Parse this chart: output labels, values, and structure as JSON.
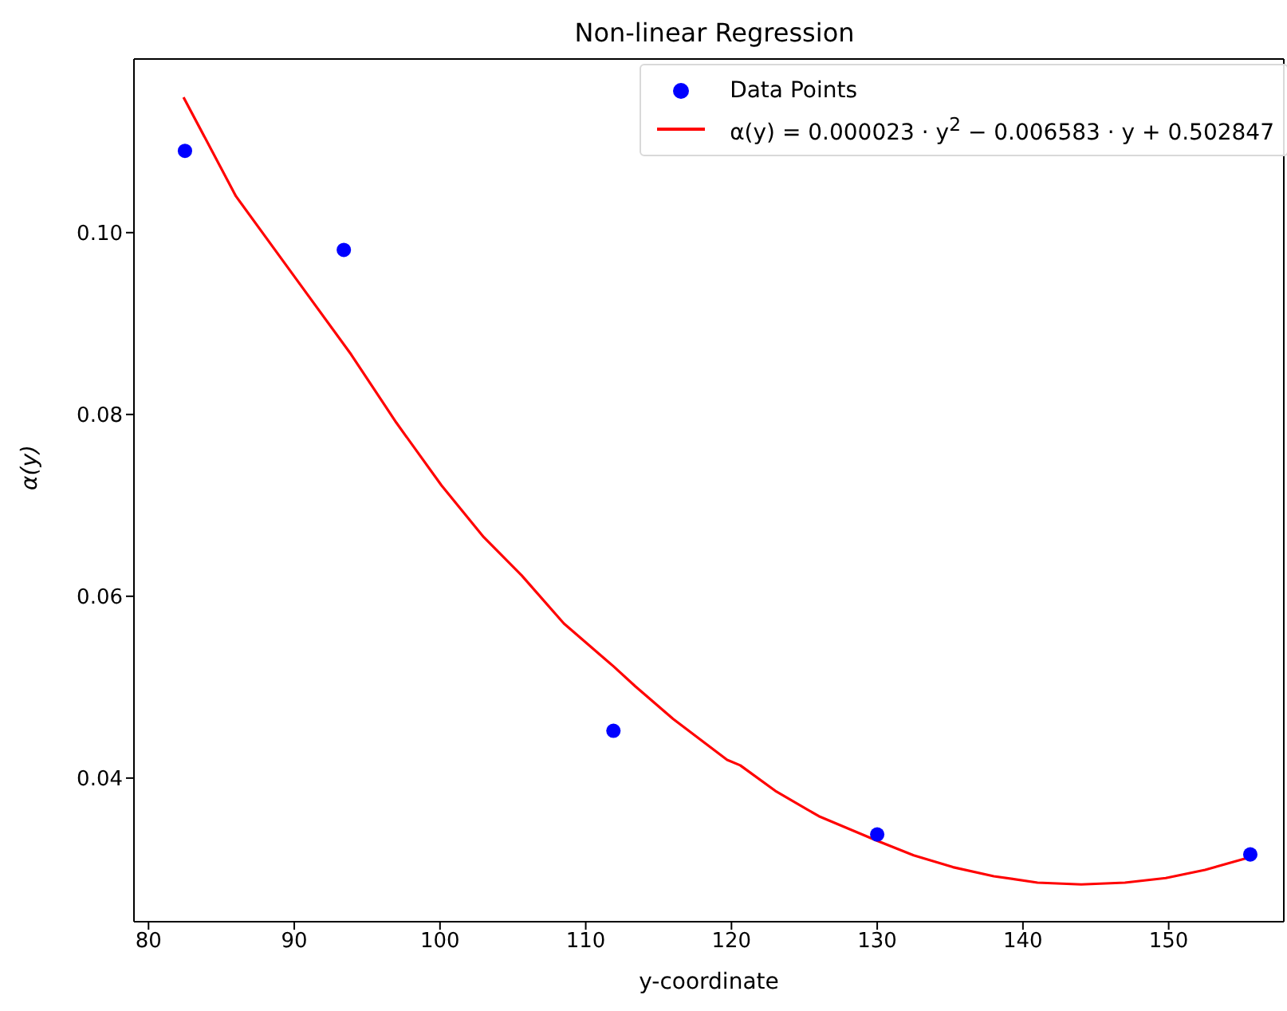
{
  "chart_data": {
    "type": "scatter",
    "title": "Non-linear Regression",
    "xlabel": "y-coordinate",
    "ylabel": "α(y)",
    "xlim": [
      79.0,
      157.9
    ],
    "ylim": [
      0.0242,
      0.1191
    ],
    "xticks": [
      80,
      90,
      100,
      110,
      120,
      130,
      140,
      150
    ],
    "yticks": [
      0.04,
      0.06,
      0.08,
      {
        "value": 0.1,
        "label": "0.10"
      }
    ],
    "legend": "top right",
    "series": [
      {
        "name": "Data Points",
        "marker": "circle",
        "color": "#0000ff",
        "x": [
          82.5,
          93.4,
          111.9,
          130.0,
          155.6
        ],
        "values": [
          0.109,
          0.0981,
          0.0452,
          0.0338,
          0.0316
        ]
      },
      {
        "name": "α(y) = 0.000023 · y$^{2}$ − 0.006583 · y + 0.502847",
        "type": "line",
        "marker": "none",
        "line_style": "solid",
        "color": "#ff0000",
        "x": [
          82.4,
          86,
          89.95,
          93.9,
          97,
          100.1,
          103,
          105.6,
          108.5,
          111.9,
          113.4,
          116,
          119.7,
          120.6,
          123,
          126,
          130,
          132.5,
          135.2,
          138,
          141,
          144,
          147,
          149.8,
          152.5,
          155.6
        ],
        "values": [
          0.1149,
          0.104,
          0.0953,
          0.0866,
          0.0791,
          0.0722,
          0.0665,
          0.0623,
          0.057,
          0.0523,
          0.0501,
          0.0465,
          0.042,
          0.0414,
          0.0386,
          0.0358,
          0.0331,
          0.0315,
          0.0302,
          0.0292,
          0.0285,
          0.0283,
          0.0285,
          0.029,
          0.0299,
          0.0313
        ]
      }
    ]
  }
}
